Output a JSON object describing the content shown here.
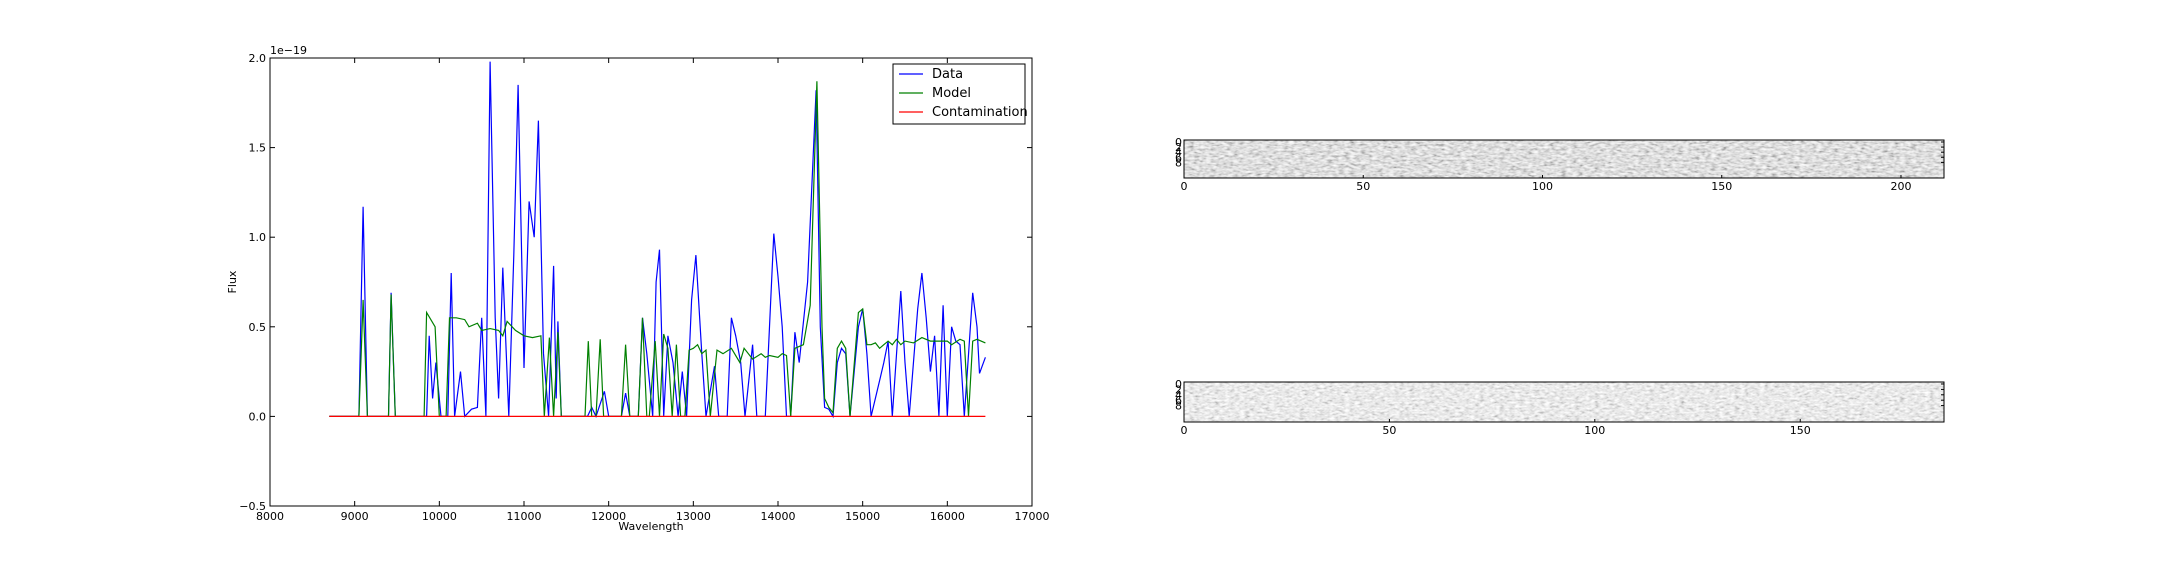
{
  "chart_data": [
    {
      "type": "line",
      "xlabel": "Wavelength",
      "ylabel": "Flux",
      "y_offset_text": "1e−19",
      "xlim": [
        8000,
        17000
      ],
      "ylim": [
        -0.5,
        2.0
      ],
      "xticks": [
        8000,
        9000,
        10000,
        11000,
        12000,
        13000,
        14000,
        15000,
        16000,
        17000
      ],
      "yticks": [
        -0.5,
        0.0,
        0.5,
        1.0,
        1.5,
        2.0
      ],
      "ytick_labels": [
        "−0.5",
        "0.0",
        "0.5",
        "1.0",
        "1.5",
        "2.0"
      ],
      "legend_position": "top-right",
      "series": [
        {
          "name": "Data",
          "color": "#0000ff",
          "points": [
            [
              8700,
              0
            ],
            [
              9000,
              0
            ],
            [
              9050,
              0
            ],
            [
              9100,
              1.17
            ],
            [
              9150,
              0
            ],
            [
              9400,
              0
            ],
            [
              9430,
              0.69
            ],
            [
              9480,
              0
            ],
            [
              9850,
              0
            ],
            [
              9880,
              0.45
            ],
            [
              9920,
              0.1
            ],
            [
              9960,
              0.3
            ],
            [
              10020,
              0
            ],
            [
              10100,
              0
            ],
            [
              10140,
              0.8
            ],
            [
              10180,
              0
            ],
            [
              10250,
              0.25
            ],
            [
              10300,
              0
            ],
            [
              10380,
              0.04
            ],
            [
              10450,
              0.05
            ],
            [
              10500,
              0.55
            ],
            [
              10550,
              0
            ],
            [
              10600,
              1.98
            ],
            [
              10660,
              0.55
            ],
            [
              10700,
              0.1
            ],
            [
              10750,
              0.83
            ],
            [
              10820,
              0
            ],
            [
              10880,
              0.9
            ],
            [
              10930,
              1.85
            ],
            [
              11000,
              0.27
            ],
            [
              11060,
              1.2
            ],
            [
              11120,
              1.0
            ],
            [
              11170,
              1.65
            ],
            [
              11230,
              0.35
            ],
            [
              11290,
              0
            ],
            [
              11350,
              0.84
            ],
            [
              11380,
              0.1
            ],
            [
              11400,
              0.53
            ],
            [
              11440,
              0
            ],
            [
              11750,
              0
            ],
            [
              11800,
              0.05
            ],
            [
              11850,
              0
            ],
            [
              11950,
              0.14
            ],
            [
              12000,
              0
            ],
            [
              12150,
              0
            ],
            [
              12200,
              0.13
            ],
            [
              12250,
              0
            ],
            [
              12350,
              0
            ],
            [
              12400,
              0.55
            ],
            [
              12450,
              0.35
            ],
            [
              12520,
              0
            ],
            [
              12560,
              0.75
            ],
            [
              12600,
              0.93
            ],
            [
              12650,
              0
            ],
            [
              12700,
              0.45
            ],
            [
              12760,
              0.3
            ],
            [
              12820,
              0
            ],
            [
              12870,
              0.25
            ],
            [
              12920,
              0
            ],
            [
              12980,
              0.65
            ],
            [
              13030,
              0.9
            ],
            [
              13100,
              0.35
            ],
            [
              13150,
              0
            ],
            [
              13250,
              0.28
            ],
            [
              13300,
              0
            ],
            [
              13400,
              0
            ],
            [
              13450,
              0.55
            ],
            [
              13500,
              0.45
            ],
            [
              13560,
              0.3
            ],
            [
              13610,
              0
            ],
            [
              13700,
              0.4
            ],
            [
              13750,
              0
            ],
            [
              13850,
              0
            ],
            [
              13900,
              0.5
            ],
            [
              13950,
              1.02
            ],
            [
              14000,
              0.78
            ],
            [
              14050,
              0.5
            ],
            [
              14100,
              0
            ],
            [
              14150,
              0
            ],
            [
              14200,
              0.47
            ],
            [
              14250,
              0.3
            ],
            [
              14350,
              0.75
            ],
            [
              14450,
              1.82
            ],
            [
              14500,
              0.5
            ],
            [
              14550,
              0.05
            ],
            [
              14600,
              0.04
            ],
            [
              14650,
              0
            ],
            [
              14700,
              0.3
            ],
            [
              14750,
              0.38
            ],
            [
              14800,
              0.35
            ],
            [
              14850,
              0
            ],
            [
              14950,
              0.5
            ],
            [
              15000,
              0.6
            ],
            [
              15050,
              0.35
            ],
            [
              15100,
              0
            ],
            [
              15200,
              0.2
            ],
            [
              15250,
              0.3
            ],
            [
              15300,
              0.42
            ],
            [
              15350,
              0
            ],
            [
              15450,
              0.7
            ],
            [
              15500,
              0.3
            ],
            [
              15550,
              0
            ],
            [
              15650,
              0.6
            ],
            [
              15700,
              0.8
            ],
            [
              15750,
              0.55
            ],
            [
              15800,
              0.25
            ],
            [
              15850,
              0.45
            ],
            [
              15900,
              0
            ],
            [
              15950,
              0.62
            ],
            [
              16000,
              0
            ],
            [
              16050,
              0.5
            ],
            [
              16100,
              0.42
            ],
            [
              16150,
              0.4
            ],
            [
              16200,
              0
            ],
            [
              16300,
              0.69
            ],
            [
              16350,
              0.5
            ],
            [
              16380,
              0.24
            ],
            [
              16450,
              0.33
            ]
          ]
        },
        {
          "name": "Model",
          "color": "#008000",
          "points": [
            [
              8700,
              0
            ],
            [
              9050,
              0
            ],
            [
              9100,
              0.65
            ],
            [
              9150,
              0
            ],
            [
              9400,
              0
            ],
            [
              9430,
              0.68
            ],
            [
              9480,
              0
            ],
            [
              9820,
              0
            ],
            [
              9850,
              0.58
            ],
            [
              9950,
              0.5
            ],
            [
              10000,
              0
            ],
            [
              10080,
              0
            ],
            [
              10120,
              0.55
            ],
            [
              10200,
              0.55
            ],
            [
              10300,
              0.54
            ],
            [
              10350,
              0.5
            ],
            [
              10450,
              0.52
            ],
            [
              10500,
              0.48
            ],
            [
              10600,
              0.49
            ],
            [
              10700,
              0.48
            ],
            [
              10750,
              0.45
            ],
            [
              10800,
              0.53
            ],
            [
              10900,
              0.48
            ],
            [
              11000,
              0.45
            ],
            [
              11100,
              0.44
            ],
            [
              11200,
              0.45
            ],
            [
              11240,
              0
            ],
            [
              11300,
              0.44
            ],
            [
              11350,
              0
            ],
            [
              11400,
              0.47
            ],
            [
              11440,
              0
            ],
            [
              11720,
              0
            ],
            [
              11760,
              0.42
            ],
            [
              11800,
              0
            ],
            [
              11850,
              0
            ],
            [
              11900,
              0.43
            ],
            [
              11940,
              0
            ],
            [
              12150,
              0
            ],
            [
              12200,
              0.4
            ],
            [
              12250,
              0
            ],
            [
              12350,
              0
            ],
            [
              12400,
              0.55
            ],
            [
              12450,
              0
            ],
            [
              12480,
              0
            ],
            [
              12550,
              0.42
            ],
            [
              12600,
              0
            ],
            [
              12650,
              0.46
            ],
            [
              12700,
              0.38
            ],
            [
              12750,
              0
            ],
            [
              12800,
              0.4
            ],
            [
              12850,
              0
            ],
            [
              12900,
              0
            ],
            [
              12950,
              0.37
            ],
            [
              13000,
              0.38
            ],
            [
              13050,
              0.4
            ],
            [
              13100,
              0.35
            ],
            [
              13150,
              0.37
            ],
            [
              13200,
              0
            ],
            [
              13280,
              0.37
            ],
            [
              13350,
              0.35
            ],
            [
              13450,
              0.38
            ],
            [
              13550,
              0.3
            ],
            [
              13600,
              0.38
            ],
            [
              13700,
              0.32
            ],
            [
              13800,
              0.35
            ],
            [
              13850,
              0.33
            ],
            [
              13900,
              0.34
            ],
            [
              14000,
              0.33
            ],
            [
              14050,
              0.35
            ],
            [
              14100,
              0.34
            ],
            [
              14150,
              0
            ],
            [
              14200,
              0.38
            ],
            [
              14300,
              0.4
            ],
            [
              14380,
              0.62
            ],
            [
              14460,
              1.87
            ],
            [
              14520,
              0.5
            ],
            [
              14550,
              0.1
            ],
            [
              14600,
              0.05
            ],
            [
              14650,
              0.02
            ],
            [
              14700,
              0.38
            ],
            [
              14750,
              0.42
            ],
            [
              14800,
              0.38
            ],
            [
              14850,
              0
            ],
            [
              14950,
              0.58
            ],
            [
              15000,
              0.6
            ],
            [
              15050,
              0.4
            ],
            [
              15100,
              0.4
            ],
            [
              15150,
              0.41
            ],
            [
              15200,
              0.38
            ],
            [
              15250,
              0.4
            ],
            [
              15300,
              0.42
            ],
            [
              15350,
              0.4
            ],
            [
              15400,
              0.43
            ],
            [
              15450,
              0.4
            ],
            [
              15500,
              0.42
            ],
            [
              15600,
              0.41
            ],
            [
              15700,
              0.44
            ],
            [
              15800,
              0.42
            ],
            [
              15900,
              0.42
            ],
            [
              16000,
              0.42
            ],
            [
              16050,
              0.4
            ],
            [
              16150,
              0.43
            ],
            [
              16200,
              0.42
            ],
            [
              16250,
              0
            ],
            [
              16300,
              0.42
            ],
            [
              16350,
              0.43
            ],
            [
              16450,
              0.41
            ]
          ]
        },
        {
          "name": "Contamination",
          "color": "#ff0000",
          "points": [
            [
              8700,
              0
            ],
            [
              16450,
              0
            ]
          ]
        }
      ]
    },
    {
      "type": "heatmap",
      "xlim": [
        0,
        212
      ],
      "xticks": [
        0,
        50,
        100,
        150,
        200
      ],
      "yticks": [
        0,
        2,
        4,
        6,
        8
      ]
    },
    {
      "type": "heatmap",
      "xlim": [
        0,
        185
      ],
      "xticks": [
        0,
        50,
        100,
        150
      ],
      "yticks": [
        0,
        2,
        4,
        6,
        8
      ]
    }
  ]
}
